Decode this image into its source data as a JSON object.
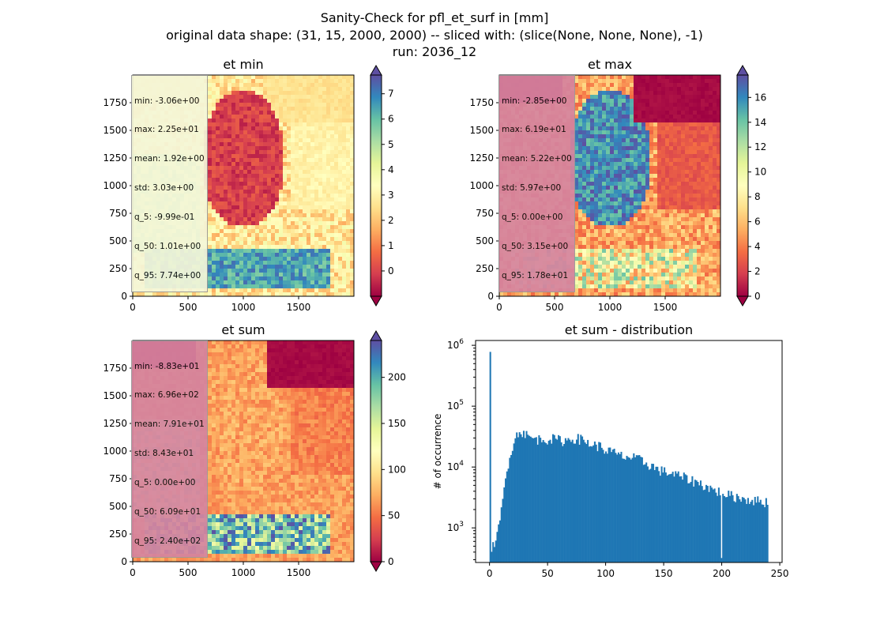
{
  "figure": {
    "suptitle": [
      "Sanity-Check for pfl_et_surf in [mm]",
      "original data shape: (31, 15, 2000, 2000) -- sliced with: (slice(None, None, None), -1)",
      "run: 2036_12"
    ]
  },
  "colors": {
    "spectral": [
      "#9e0142",
      "#d53e4f",
      "#f46d43",
      "#fdae61",
      "#fee08b",
      "#ffffbf",
      "#e6f598",
      "#abdda4",
      "#66c2a5",
      "#3288bd",
      "#5e4fa2"
    ],
    "hist_bar": "#1f77b4",
    "statbox_bg_min": "#f5f7d9",
    "statbox_bg_other": "#d5849f"
  },
  "panels": {
    "et_min": {
      "title": "et min",
      "stats": [
        "min: -3.06e+00",
        "max: 2.25e+01",
        "mean: 1.92e+00",
        "std: 3.03e+00",
        "q_5: -9.99e-01",
        "q_50: 1.01e+00",
        "q_95: 7.74e+00"
      ]
    },
    "et_max": {
      "title": "et max",
      "stats": [
        "min: -2.85e+00",
        "max: 6.19e+01",
        "mean: 5.22e+00",
        "std: 5.97e+00",
        "q_5: 0.00e+00",
        "q_50: 3.15e+00",
        "q_95: 1.78e+01"
      ]
    },
    "et_sum": {
      "title": "et sum",
      "stats": [
        "min: -8.83e+01",
        "max: 6.96e+02",
        "mean: 7.91e+01",
        "std: 8.43e+01",
        "q_5: 0.00e+00",
        "q_50: 6.09e+01",
        "q_95: 2.40e+02"
      ]
    },
    "dist": {
      "title": "et sum - distribution"
    }
  },
  "chart_data": [
    {
      "type": "heatmap",
      "title": "et min",
      "colormap": "Spectral",
      "x_range": [
        0,
        2000
      ],
      "y_range": [
        0,
        2000
      ],
      "x_ticks": [
        "0",
        "500",
        "1000",
        "1500"
      ],
      "y_ticks": [
        "0",
        "250",
        "500",
        "750",
        "1000",
        "1250",
        "1500",
        "1750"
      ],
      "colorbar": {
        "vmin": -1.0,
        "vmax": 7.74,
        "ticks": [
          "0",
          "1",
          "2",
          "3",
          "4",
          "5",
          "6",
          "7"
        ],
        "extend": "both"
      }
    },
    {
      "type": "heatmap",
      "title": "et max",
      "colormap": "Spectral",
      "x_range": [
        0,
        2000
      ],
      "y_range": [
        0,
        2000
      ],
      "x_ticks": [
        "0",
        "500",
        "1000",
        "1500"
      ],
      "y_ticks": [
        "0",
        "250",
        "500",
        "750",
        "1000",
        "1250",
        "1500",
        "1750"
      ],
      "colorbar": {
        "vmin": 0.0,
        "vmax": 17.8,
        "ticks": [
          "0",
          "2",
          "4",
          "6",
          "8",
          "10",
          "12",
          "14",
          "16"
        ],
        "extend": "both"
      }
    },
    {
      "type": "heatmap",
      "title": "et sum",
      "colormap": "Spectral",
      "x_range": [
        0,
        2000
      ],
      "y_range": [
        0,
        2000
      ],
      "x_ticks": [
        "0",
        "500",
        "1000",
        "1500"
      ],
      "y_ticks": [
        "0",
        "250",
        "500",
        "750",
        "1000",
        "1250",
        "1500",
        "1750"
      ],
      "colorbar": {
        "vmin": 0.0,
        "vmax": 240,
        "ticks": [
          "0",
          "50",
          "100",
          "150",
          "200"
        ],
        "extend": "both"
      }
    },
    {
      "type": "bar",
      "title": "et sum - distribution",
      "ylabel": "# of occurrence",
      "xlabel": "",
      "yscale": "log",
      "xlim": [
        -12,
        252
      ],
      "ylim": [
        270,
        1200000
      ],
      "x_ticks": [
        "0",
        "50",
        "100",
        "150",
        "200",
        "250"
      ],
      "y_ticks": [
        "10^3",
        "10^4",
        "10^5",
        "10^6"
      ],
      "anchors": [
        [
          0,
          780000
        ],
        [
          1,
          500
        ],
        [
          3,
          500
        ],
        [
          5,
          600
        ],
        [
          7,
          800
        ],
        [
          9,
          1300
        ],
        [
          11,
          2500
        ],
        [
          13,
          5000
        ],
        [
          15,
          9000
        ],
        [
          17,
          14000
        ],
        [
          19,
          20000
        ],
        [
          21,
          26000
        ],
        [
          23,
          32000
        ],
        [
          25,
          37000
        ],
        [
          27,
          40000
        ],
        [
          30,
          36000
        ],
        [
          33,
          32000
        ],
        [
          36,
          30000
        ],
        [
          40,
          29000
        ],
        [
          45,
          28500
        ],
        [
          50,
          29000
        ],
        [
          55,
          29000
        ],
        [
          60,
          28000
        ],
        [
          65,
          27000
        ],
        [
          70,
          29000
        ],
        [
          75,
          30000
        ],
        [
          80,
          28000
        ],
        [
          85,
          25000
        ],
        [
          90,
          23000
        ],
        [
          95,
          22000
        ],
        [
          100,
          19000
        ],
        [
          105,
          18000
        ],
        [
          110,
          16000
        ],
        [
          115,
          15000
        ],
        [
          120,
          14500
        ],
        [
          125,
          14000
        ],
        [
          130,
          13000
        ],
        [
          135,
          11500
        ],
        [
          140,
          10500
        ],
        [
          145,
          9000
        ],
        [
          150,
          8500
        ],
        [
          155,
          8000
        ],
        [
          160,
          7500
        ],
        [
          165,
          7000
        ],
        [
          170,
          6500
        ],
        [
          175,
          6000
        ],
        [
          180,
          5500
        ],
        [
          185,
          5000
        ],
        [
          190,
          4500
        ],
        [
          195,
          4000
        ],
        [
          200,
          4000
        ],
        [
          205,
          3500
        ],
        [
          210,
          3300
        ],
        [
          215,
          3200
        ],
        [
          220,
          3000
        ],
        [
          225,
          2900
        ],
        [
          230,
          2800
        ],
        [
          235,
          2700
        ],
        [
          239,
          2700
        ]
      ]
    }
  ]
}
